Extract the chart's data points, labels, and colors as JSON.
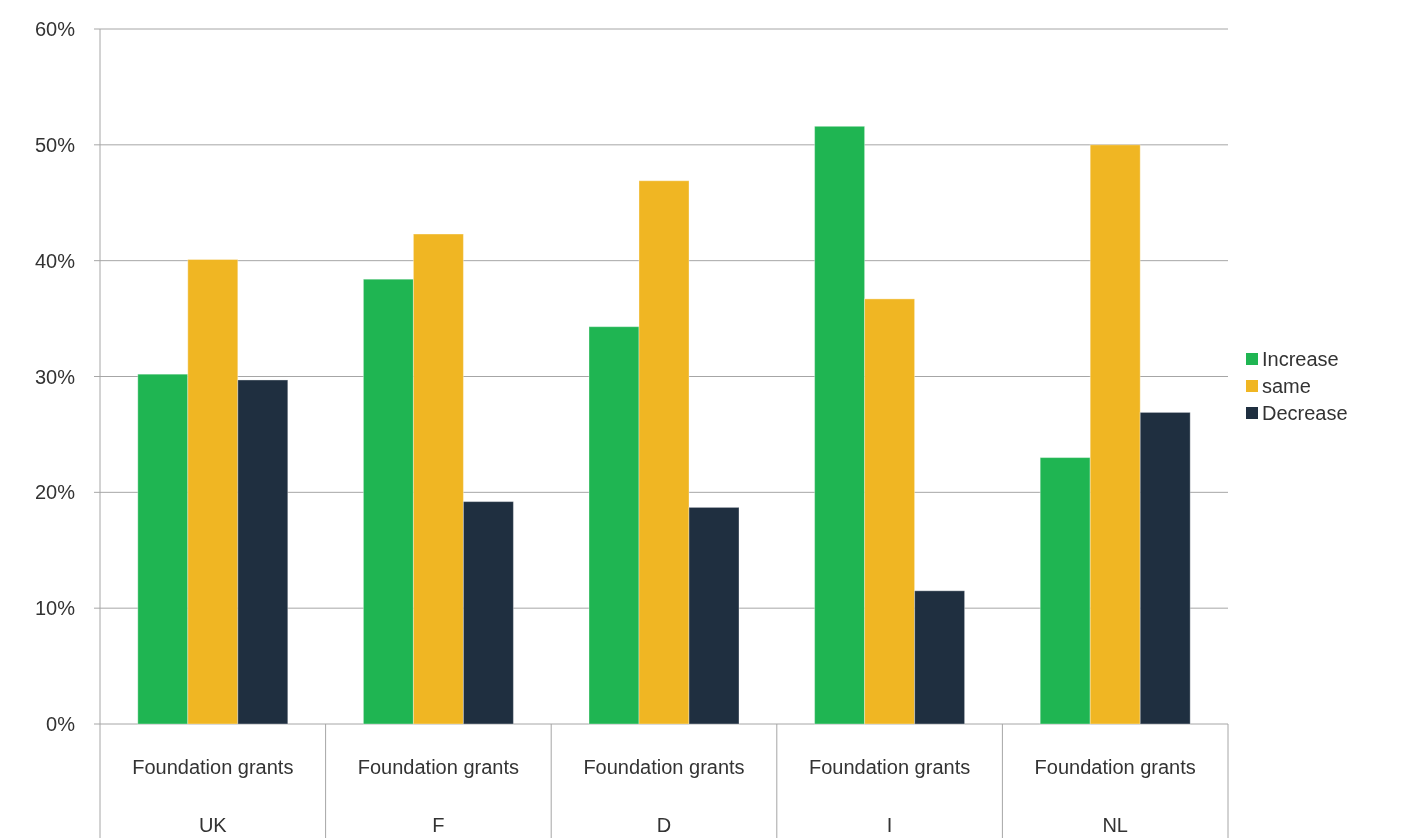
{
  "chart_data": {
    "type": "bar",
    "categories": [
      "Foundation grants\nUK",
      "Foundation grants\nF",
      "Foundation grants\nD",
      "Foundation grants\nI",
      "Foundation grants\nNL"
    ],
    "series": [
      {
        "name": "Increase",
        "color": "#1fb552",
        "values": [
          30.2,
          38.4,
          34.3,
          51.6,
          23.0
        ]
      },
      {
        "name": "same",
        "color": "#f0b623",
        "values": [
          40.1,
          42.3,
          46.9,
          36.7,
          50.0
        ]
      },
      {
        "name": "Decrease",
        "color": "#1f2f40",
        "values": [
          29.7,
          19.2,
          18.7,
          11.5,
          26.9
        ]
      }
    ],
    "ylim": [
      0,
      60
    ],
    "yticks": [
      {
        "value": 0,
        "label": "0%"
      },
      {
        "value": 10,
        "label": "10%"
      },
      {
        "value": 20,
        "label": "20%"
      },
      {
        "value": 30,
        "label": "30%"
      },
      {
        "value": 40,
        "label": "40%"
      },
      {
        "value": 50,
        "label": "50%"
      },
      {
        "value": 60,
        "label": "60%"
      }
    ],
    "grid": "y",
    "legend": "right"
  }
}
